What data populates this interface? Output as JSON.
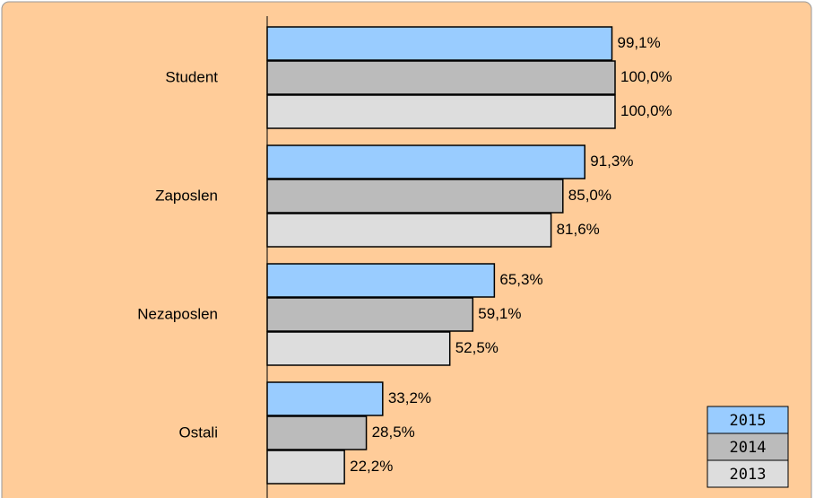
{
  "chart_data": {
    "type": "hbar",
    "categories": [
      "Student",
      "Zaposlen",
      "Nezaposlen",
      "Ostali"
    ],
    "xlim": [
      0,
      100
    ],
    "legend": "bottom-right",
    "series": [
      {
        "name": "2015",
        "color": "#99ccff",
        "values": [
          99.1,
          91.3,
          65.3,
          33.2
        ],
        "value_labels": [
          "99,1%",
          "91,3%",
          "65,3%",
          "33,2%"
        ]
      },
      {
        "name": "2014",
        "color": "#bbbbbb",
        "values": [
          100.0,
          85.0,
          59.1,
          28.5
        ],
        "value_labels": [
          "100,0%",
          "85,0%",
          "59,1%",
          "28,5%"
        ]
      },
      {
        "name": "2013",
        "color": "#dddddd",
        "values": [
          100.0,
          81.6,
          52.5,
          22.2
        ],
        "value_labels": [
          "100,0%",
          "81,6%",
          "52,5%",
          "22,2%"
        ]
      }
    ]
  }
}
